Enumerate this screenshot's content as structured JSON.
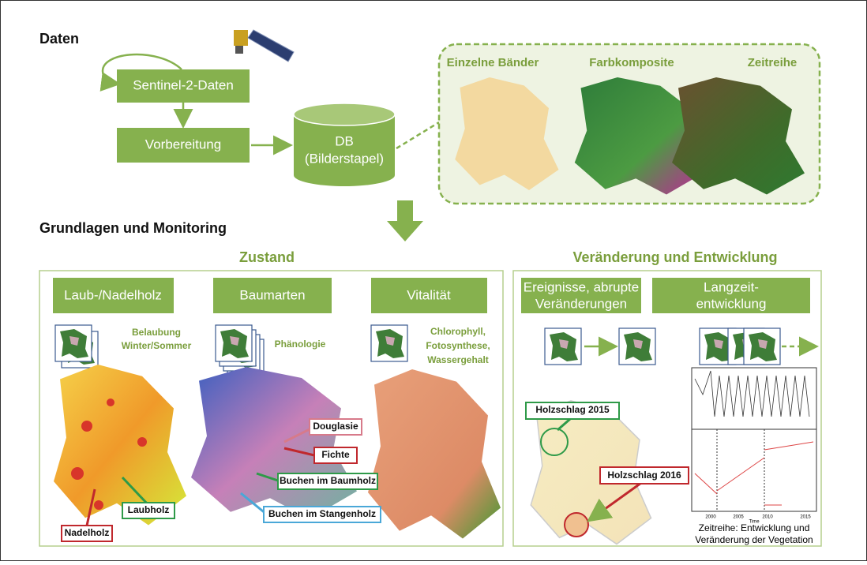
{
  "daten": {
    "title": "Daten",
    "sentinel": "Sentinel-2-Daten",
    "vorbereitung": "Vorbereitung",
    "db": [
      "DB",
      "(Bilderstapel)"
    ],
    "panels": [
      "Einzelne Bänder",
      "Farbkomposite",
      "Zeitreihe"
    ]
  },
  "grundlagen": {
    "title": "Grundlagen und Monitoring",
    "zustand": {
      "title": "Zustand",
      "boxes": [
        "Laub-/Nadelholz",
        "Baumarten",
        "Vitalität"
      ],
      "notes": [
        [
          "Belaubung",
          "Winter/Sommer"
        ],
        [
          "Phänologie"
        ],
        [
          "Chlorophyll,",
          "Fotosynthese,",
          "Wassergehalt"
        ]
      ],
      "labels": [
        "Laubholz",
        "Nadelholz",
        "Douglasie",
        "Fichte",
        "Buchen im Baumholz",
        "Buchen im Stangenholz"
      ]
    },
    "veraenderung": {
      "title": "Veränderung und Entwicklung",
      "boxes": [
        [
          "Ereignisse, abrupte",
          "Veränderungen"
        ],
        [
          "Langzeit-",
          "entwicklung"
        ]
      ],
      "labels": [
        "Holzschlag 2015",
        "Holzschlag 2016"
      ],
      "plot_ticks": [
        "2000",
        "2005",
        "2010",
        "2015"
      ],
      "plot_axis": "Time",
      "caption": [
        "Zeitreihe: Entwicklung und",
        "Veränderung der Vegetation"
      ]
    }
  }
}
